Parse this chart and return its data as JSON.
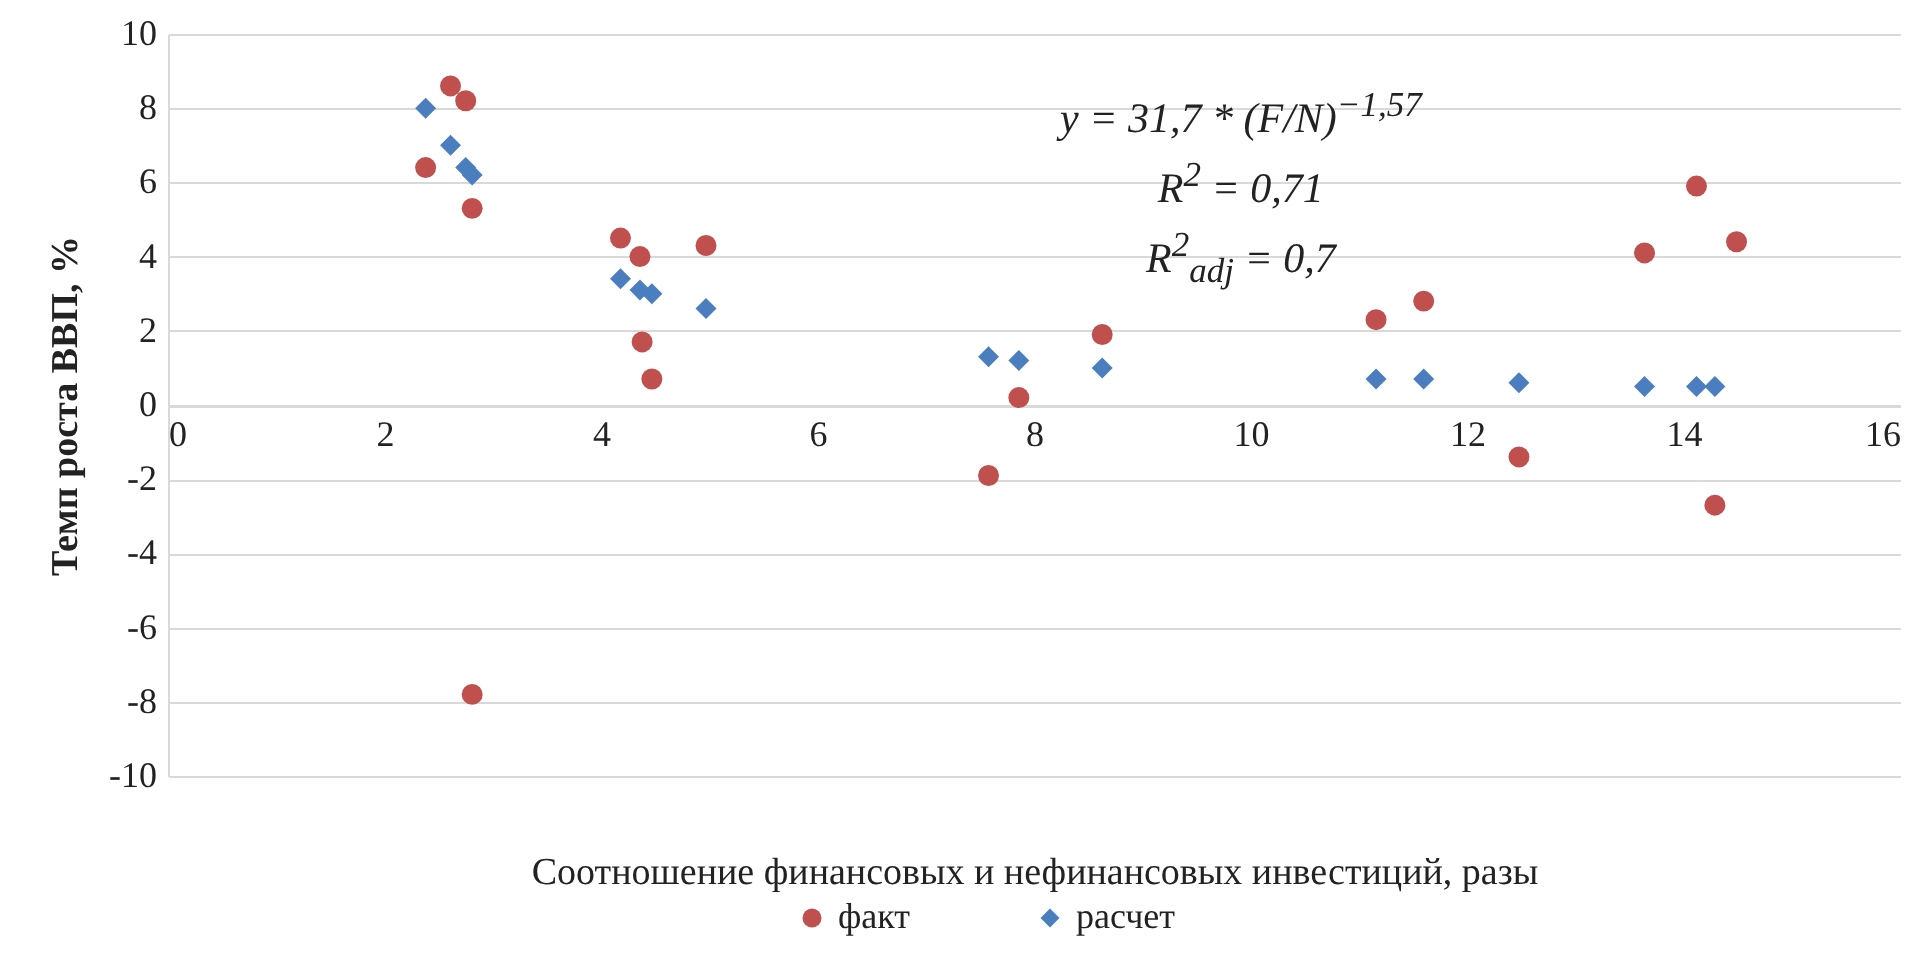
{
  "chart_data": {
    "type": "scatter",
    "xlabel": "Соотношение финансовых и нефинансовых инвестиций, разы",
    "ylabel": "Темп роста ВВП, %",
    "xlim": [
      0,
      16
    ],
    "xticks": [
      0,
      2,
      4,
      6,
      8,
      10,
      12,
      14,
      16
    ],
    "ylim": [
      -10,
      10
    ],
    "yticks": [
      -10,
      -8,
      -6,
      -4,
      -2,
      0,
      2,
      4,
      6,
      8,
      10
    ],
    "grid": "y",
    "legend": "bottom",
    "annotations": [
      "y = 31,7 * (F/N)$^{−1,57}$",
      "R$^{2}$ = 0,71",
      "R$^{2}$$_{adj}$ = 0,7"
    ],
    "series": [
      {
        "name": "факт",
        "color": "#c0504d",
        "marker": "circle",
        "x": [
          2.38,
          2.61,
          2.75,
          2.81,
          2.81,
          4.18,
          4.36,
          4.38,
          4.47,
          4.97,
          7.58,
          7.86,
          8.63,
          11.16,
          11.6,
          12.48,
          13.64,
          14.12,
          14.29,
          14.49
        ],
        "values": [
          6.4,
          8.6,
          8.2,
          5.3,
          -7.8,
          4.5,
          4.0,
          1.7,
          0.7,
          4.3,
          -1.9,
          0.2,
          1.9,
          2.3,
          2.8,
          -1.4,
          4.1,
          5.9,
          -2.7,
          4.4
        ]
      },
      {
        "name": "расчет",
        "color": "#4a7ebf",
        "marker": "diamond",
        "x": [
          2.38,
          2.61,
          2.75,
          2.81,
          4.18,
          4.36,
          4.47,
          4.97,
          7.58,
          7.86,
          8.63,
          11.16,
          11.6,
          12.48,
          13.64,
          14.12,
          14.29
        ],
        "values": [
          8.0,
          7.0,
          6.4,
          6.2,
          3.4,
          3.1,
          3.0,
          2.6,
          1.3,
          1.2,
          1.0,
          0.7,
          0.7,
          0.6,
          0.5,
          0.5,
          0.5
        ]
      }
    ]
  }
}
